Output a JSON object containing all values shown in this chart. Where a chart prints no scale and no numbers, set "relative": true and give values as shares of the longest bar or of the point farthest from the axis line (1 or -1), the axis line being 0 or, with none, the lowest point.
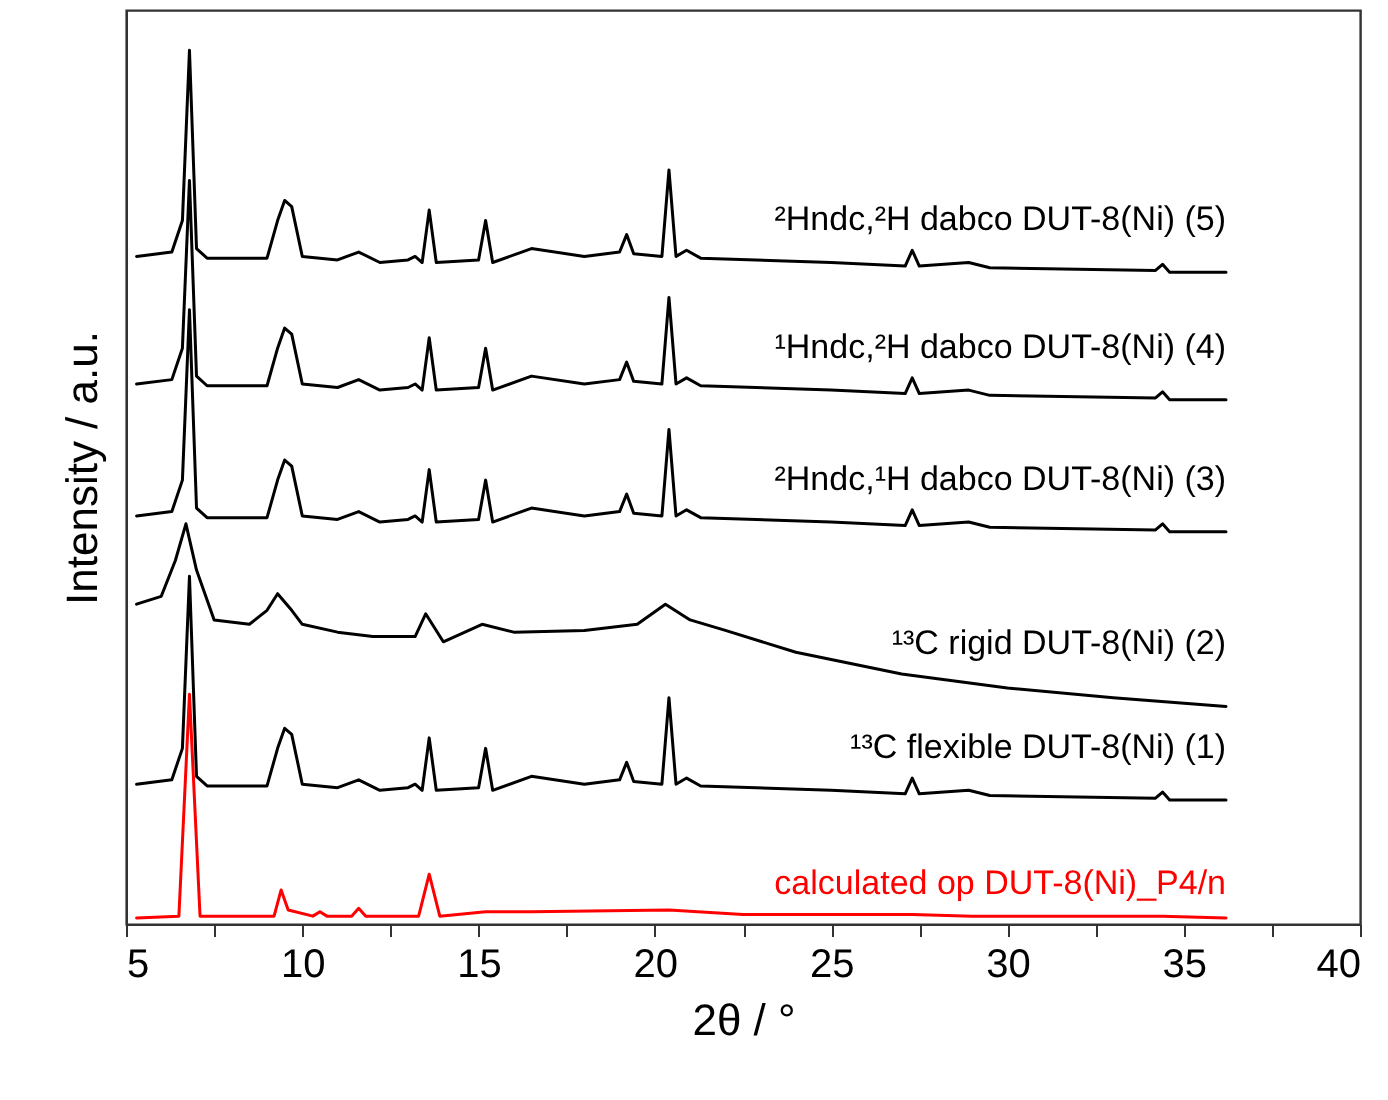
{
  "chart_data": {
    "type": "line",
    "relative": true,
    "xlabel": "2θ / °",
    "ylabel": "Intensity / a.u.",
    "tick_labels": "x",
    "xlim": [
      5,
      40
    ],
    "xticks": [
      5,
      {
        "value": 7.5,
        "label": null
      },
      10,
      {
        "value": 12.5,
        "label": null
      },
      15,
      {
        "value": 17.5,
        "label": null
      },
      20,
      {
        "value": 22.5,
        "label": null
      },
      25,
      {
        "value": 27.5,
        "label": null
      },
      30,
      {
        "value": 32.5,
        "label": null
      },
      35,
      {
        "value": 37.5,
        "label": null
      },
      40
    ],
    "x": [
      5.3,
      6.3,
      6.6,
      6.8,
      7.0,
      7.3,
      9.0,
      9.3,
      9.5,
      9.7,
      10.0,
      11.0,
      11.6,
      12.2,
      13.0,
      13.2,
      13.4,
      13.6,
      13.8,
      15.0,
      15.2,
      15.4,
      16.5,
      18.0,
      19.0,
      19.2,
      19.4,
      20.2,
      20.4,
      20.6,
      20.9,
      21.3,
      25,
      27.1,
      27.3,
      27.5,
      28.9,
      29.5,
      34.2,
      34.4,
      34.6,
      36.2
    ],
    "series": [
      {
        "name": "²Hndc,²H dabco DUT-8(Ni) (5)",
        "color": "#000000",
        "values": [
          0.764,
          0.769,
          0.805,
          1,
          0.773,
          0.762,
          0.762,
          0.805,
          0.828,
          0.821,
          0.764,
          0.76,
          0.769,
          0.757,
          0.76,
          0.764,
          0.757,
          0.817,
          0.757,
          0.76,
          0.805,
          0.757,
          0.773,
          0.764,
          0.769,
          0.789,
          0.767,
          0.764,
          0.863,
          0.764,
          0.771,
          0.762,
          0.757,
          0.753,
          0.771,
          0.753,
          0.757,
          0.751,
          0.748,
          0.755,
          0.746,
          0.746
        ]
      },
      {
        "name": "¹Hndc,²H dabco DUT-8(Ni) (4)",
        "color": "#000000",
        "values": [
          0.618,
          0.623,
          0.659,
          0.851,
          0.627,
          0.616,
          0.616,
          0.659,
          0.682,
          0.675,
          0.618,
          0.614,
          0.623,
          0.611,
          0.614,
          0.618,
          0.611,
          0.671,
          0.611,
          0.614,
          0.659,
          0.611,
          0.627,
          0.618,
          0.623,
          0.643,
          0.621,
          0.618,
          0.717,
          0.618,
          0.625,
          0.616,
          0.611,
          0.607,
          0.625,
          0.607,
          0.611,
          0.605,
          0.602,
          0.609,
          0.6,
          0.6
        ]
      },
      {
        "name": "²Hndc,¹H dabco DUT-8(Ni) (3)",
        "color": "#000000",
        "values": [
          0.467,
          0.472,
          0.508,
          0.703,
          0.476,
          0.465,
          0.465,
          0.508,
          0.531,
          0.524,
          0.467,
          0.463,
          0.472,
          0.46,
          0.463,
          0.467,
          0.46,
          0.52,
          0.46,
          0.463,
          0.508,
          0.46,
          0.476,
          0.467,
          0.472,
          0.492,
          0.47,
          0.467,
          0.566,
          0.467,
          0.474,
          0.465,
          0.46,
          0.456,
          0.474,
          0.456,
          0.46,
          0.454,
          0.451,
          0.458,
          0.449,
          0.449
        ]
      },
      {
        "name": "¹³C rigid DUT-8(Ni) (2)",
        "color": "#000000",
        "x": [
          5.3,
          6.0,
          6.4,
          6.7,
          7.0,
          7.5,
          8.5,
          9.0,
          9.3,
          9.7,
          10.0,
          11.0,
          12.0,
          13.2,
          13.5,
          14.0,
          15.1,
          16.0,
          18.0,
          19.5,
          20.3,
          21.0,
          22.0,
          24.0,
          27.0,
          30.0,
          33.0,
          36.2
        ],
        "values": [
          0.366,
          0.375,
          0.416,
          0.458,
          0.405,
          0.348,
          0.343,
          0.359,
          0.378,
          0.359,
          0.343,
          0.334,
          0.329,
          0.329,
          0.355,
          0.323,
          0.343,
          0.334,
          0.336,
          0.343,
          0.366,
          0.348,
          0.336,
          0.311,
          0.286,
          0.27,
          0.259,
          0.249
        ]
      },
      {
        "name": "¹³C flexible DUT-8(Ni) (1)",
        "color": "#000000",
        "values": [
          0.16,
          0.165,
          0.201,
          0.398,
          0.169,
          0.158,
          0.158,
          0.201,
          0.224,
          0.217,
          0.16,
          0.156,
          0.165,
          0.153,
          0.156,
          0.16,
          0.153,
          0.213,
          0.153,
          0.156,
          0.201,
          0.153,
          0.169,
          0.16,
          0.165,
          0.185,
          0.163,
          0.16,
          0.259,
          0.16,
          0.167,
          0.158,
          0.153,
          0.149,
          0.167,
          0.149,
          0.153,
          0.147,
          0.144,
          0.151,
          0.142,
          0.142
        ]
      },
      {
        "name": "calculated op DUT-8(Ni)_P4/n",
        "color": "#ff0000",
        "x": [
          5.3,
          6.5,
          6.8,
          7.1,
          9.2,
          9.4,
          9.6,
          10.3,
          10.5,
          10.7,
          11.4,
          11.6,
          11.8,
          13.3,
          13.6,
          13.9,
          15.2,
          16.5,
          20.4,
          22.5,
          27.3,
          29,
          34.4,
          36.2
        ],
        "values": [
          0.007,
          0.009,
          0.263,
          0.009,
          0.009,
          0.039,
          0.016,
          0.009,
          0.014,
          0.009,
          0.009,
          0.018,
          0.009,
          0.009,
          0.057,
          0.009,
          0.014,
          0.014,
          0.016,
          0.011,
          0.011,
          0.009,
          0.009,
          0.007
        ]
      }
    ]
  }
}
